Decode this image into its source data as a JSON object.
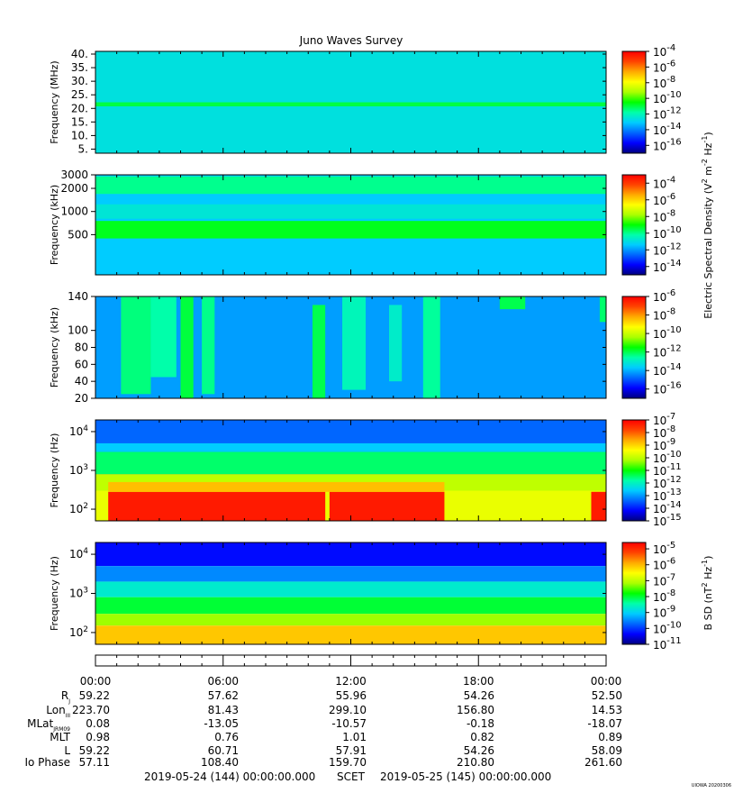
{
  "title": "Juno Waves Survey",
  "watermark": "UIOWA 20200306",
  "colors": {
    "cmap": [
      "#00007f",
      "#0000ff",
      "#0066ff",
      "#00ccff",
      "#00ffaa",
      "#00ff00",
      "#aaff00",
      "#ffff00",
      "#ffaa00",
      "#ff4400",
      "#ff0000"
    ]
  },
  "chart_data": [
    {
      "type": "heatmap",
      "panel": 1,
      "ylabel": "Frequency (MHz)",
      "yscale": "linear",
      "ylim": [
        3.5,
        41
      ],
      "yticks": [
        5,
        10,
        15,
        20,
        25,
        30,
        35,
        40
      ],
      "yticklabels": [
        "5.",
        "10.",
        "15.",
        "20.",
        "25.",
        "30.",
        "35.",
        "40."
      ],
      "colorbar": {
        "ticklabels": [
          {
            "exp": "-4",
            "v": -4
          },
          {
            "exp": "-6",
            "v": -6
          },
          {
            "exp": "-8",
            "v": -8
          },
          {
            "exp": "-10",
            "v": -10
          },
          {
            "exp": "-12",
            "v": -12
          },
          {
            "exp": "-14",
            "v": -14
          },
          {
            "exp": "-16",
            "v": -16
          }
        ],
        "range": [
          -17,
          -4
        ]
      },
      "background_level": -12.6,
      "bands": [
        {
          "center": 21.5,
          "width": 1.5,
          "level": -11.0
        }
      ],
      "bursts": []
    },
    {
      "type": "heatmap",
      "panel": 2,
      "ylabel": "Frequency (kHz)",
      "yscale": "log",
      "ylim": [
        150,
        3000
      ],
      "yticks": [
        500,
        1000,
        2000,
        3000
      ],
      "yticklabels": [
        "500",
        "1000",
        "2000",
        "3000"
      ],
      "colorbar": {
        "ticklabels": [
          {
            "exp": "-4",
            "v": -4
          },
          {
            "exp": "-6",
            "v": -6
          },
          {
            "exp": "-8",
            "v": -8
          },
          {
            "exp": "-10",
            "v": -10
          },
          {
            "exp": "-12",
            "v": -12
          },
          {
            "exp": "-14",
            "v": -14
          }
        ],
        "range": [
          -15,
          -3
        ]
      },
      "background_level": -11.4,
      "bands": [
        {
          "center": 2200,
          "width": 0.05,
          "level": -10.0
        },
        {
          "center": 1000,
          "width": 0.04,
          "level": -10.8
        },
        {
          "center": 580,
          "width": 0.05,
          "level": -9.2
        }
      ],
      "bursts": []
    },
    {
      "type": "heatmap",
      "panel": 3,
      "ylabel": "Frequency (kHz)",
      "yscale": "linear",
      "ylim": [
        20,
        140
      ],
      "yticks": [
        20,
        40,
        60,
        80,
        100,
        140
      ],
      "yticklabels": [
        "20",
        "40",
        "60",
        "80",
        "100",
        "140"
      ],
      "colorbar": {
        "ticklabels": [
          {
            "exp": "-6",
            "v": -6
          },
          {
            "exp": "-8",
            "v": -8
          },
          {
            "exp": "-10",
            "v": -10
          },
          {
            "exp": "-12",
            "v": -12
          },
          {
            "exp": "-14",
            "v": -14
          },
          {
            "exp": "-16",
            "v": -16
          }
        ],
        "range": [
          -17,
          -6
        ]
      },
      "background_level": -14.2,
      "bands": [],
      "bursts": [
        {
          "t0": 1.2,
          "t1": 2.6,
          "f0": 25,
          "f1": 140,
          "level": -12.3
        },
        {
          "t0": 2.6,
          "t1": 3.8,
          "f0": 45,
          "f1": 140,
          "level": -12.6
        },
        {
          "t0": 4.0,
          "t1": 4.6,
          "f0": 20,
          "f1": 140,
          "level": -11.9
        },
        {
          "t0": 5.0,
          "t1": 5.6,
          "f0": 25,
          "f1": 140,
          "level": -12.4
        },
        {
          "t0": 10.2,
          "t1": 10.8,
          "f0": 20,
          "f1": 130,
          "level": -12.0
        },
        {
          "t0": 11.6,
          "t1": 12.7,
          "f0": 30,
          "f1": 140,
          "level": -12.8
        },
        {
          "t0": 13.8,
          "t1": 14.4,
          "f0": 40,
          "f1": 130,
          "level": -13.0
        },
        {
          "t0": 15.4,
          "t1": 16.2,
          "f0": 20,
          "f1": 140,
          "level": -12.5
        },
        {
          "t0": 19.0,
          "t1": 20.2,
          "f0": 125,
          "f1": 140,
          "level": -12.0
        },
        {
          "t0": 23.7,
          "t1": 24.0,
          "f0": 110,
          "f1": 140,
          "level": -12.2
        }
      ]
    },
    {
      "type": "heatmap",
      "panel": 4,
      "ylabel": "Frequency (Hz)",
      "yscale": "log",
      "ylim": [
        50,
        20000
      ],
      "yticks": [
        100,
        1000,
        10000
      ],
      "yticklabels": [
        {
          "exp": "2"
        },
        {
          "exp": "3"
        },
        {
          "exp": "4"
        }
      ],
      "colorbar": {
        "ticklabels": [
          {
            "exp": "-7",
            "v": -7
          },
          {
            "exp": "-8",
            "v": -8
          },
          {
            "exp": "-9",
            "v": -9
          },
          {
            "exp": "-10",
            "v": -10
          },
          {
            "exp": "-11",
            "v": -11
          },
          {
            "exp": "-12",
            "v": -12
          },
          {
            "exp": "-13",
            "v": -13
          },
          {
            "exp": "-14",
            "v": -14
          },
          {
            "exp": "-15",
            "v": -15
          }
        ],
        "range": [
          -15,
          -7
        ]
      },
      "background_level": -13.5,
      "layers": [
        {
          "f0": 5000,
          "f1": 20000,
          "level": -13.4
        },
        {
          "f0": 3000,
          "f1": 5000,
          "level": -12.6
        },
        {
          "f0": 800,
          "f1": 3000,
          "level": -11.5
        },
        {
          "f0": 300,
          "f1": 800,
          "level": -10.0
        },
        {
          "f0": 50,
          "f1": 300,
          "level": -9.6
        }
      ],
      "bursts": [
        {
          "t0": 0.6,
          "t1": 10.8,
          "f0": 50,
          "f1": 280,
          "level": -7.3
        },
        {
          "t0": 11.0,
          "t1": 16.4,
          "f0": 50,
          "f1": 280,
          "level": -7.3
        },
        {
          "t0": 23.3,
          "t1": 24.0,
          "f0": 50,
          "f1": 280,
          "level": -7.3
        },
        {
          "t0": 0.6,
          "t1": 16.4,
          "f0": 280,
          "f1": 500,
          "level": -8.8
        }
      ]
    },
    {
      "type": "heatmap",
      "panel": 5,
      "ylabel": "Frequency (Hz)",
      "yscale": "log",
      "ylim": [
        50,
        20000
      ],
      "yticks": [
        100,
        1000,
        10000
      ],
      "yticklabels": [
        {
          "exp": "2"
        },
        {
          "exp": "3"
        },
        {
          "exp": "4"
        }
      ],
      "colorbar": {
        "ticklabels": [
          {
            "exp": "-5",
            "v": -5
          },
          {
            "exp": "-6",
            "v": -6
          },
          {
            "exp": "-7",
            "v": -7
          },
          {
            "exp": "-8",
            "v": -8
          },
          {
            "exp": "-9",
            "v": -9
          },
          {
            "exp": "-10",
            "v": -10
          },
          {
            "exp": "-11",
            "v": -11
          }
        ],
        "range": [
          -11,
          -4.6
        ]
      },
      "layers": [
        {
          "f0": 5000,
          "f1": 20000,
          "level": -10.3
        },
        {
          "f0": 2000,
          "f1": 5000,
          "level": -9.5
        },
        {
          "f0": 800,
          "f1": 2000,
          "level": -8.7
        },
        {
          "f0": 300,
          "f1": 800,
          "level": -8.0
        },
        {
          "f0": 150,
          "f1": 300,
          "level": -7.2
        },
        {
          "f0": 50,
          "f1": 150,
          "level": -6.1
        }
      ],
      "bursts": []
    }
  ],
  "colorbar_titles": {
    "electric": {
      "lead": "Electric Spectral Density (V",
      "e1": "2",
      "mid1": " m",
      "e2": "-2",
      "mid2": " Hz",
      "e3": "-1",
      "tail": ")"
    },
    "magnetic": {
      "lead": "B SD (nT",
      "e1": "2",
      "mid1": " Hz",
      "e2": "-1",
      "tail": ")"
    }
  },
  "time_axis": {
    "hours": [
      0,
      6,
      12,
      18,
      24
    ],
    "labels": [
      "00:00",
      "06:00",
      "12:00",
      "18:00",
      "00:00"
    ]
  },
  "ephemeris": [
    {
      "label": {
        "base": "R",
        "sub": "J"
      },
      "values": [
        "59.22",
        "57.62",
        "55.96",
        "54.26",
        "52.50"
      ]
    },
    {
      "label": {
        "base": "Lon",
        "sub": "III"
      },
      "values": [
        "223.70",
        "81.43",
        "299.10",
        "156.80",
        "14.53"
      ]
    },
    {
      "label": {
        "base": "MLat",
        "sub": "JRM09"
      },
      "values": [
        "0.08",
        "-13.05",
        "-10.57",
        "-0.18",
        "-18.07"
      ]
    },
    {
      "label": {
        "base": "MLT",
        "sub": ""
      },
      "values": [
        "0.98",
        "0.76",
        "1.01",
        "0.82",
        "0.89"
      ]
    },
    {
      "label": {
        "base": "L",
        "sub": ""
      },
      "values": [
        "59.22",
        "60.71",
        "57.91",
        "54.26",
        "58.09"
      ]
    },
    {
      "label": {
        "base": "Io Phase",
        "sub": ""
      },
      "values": [
        "57.11",
        "108.40",
        "159.70",
        "210.80",
        "261.60"
      ]
    }
  ],
  "footer": {
    "start": "2019-05-24 (144) 00:00:00.000",
    "scet": "SCET",
    "end": "2019-05-25 (145) 00:00:00.000"
  }
}
